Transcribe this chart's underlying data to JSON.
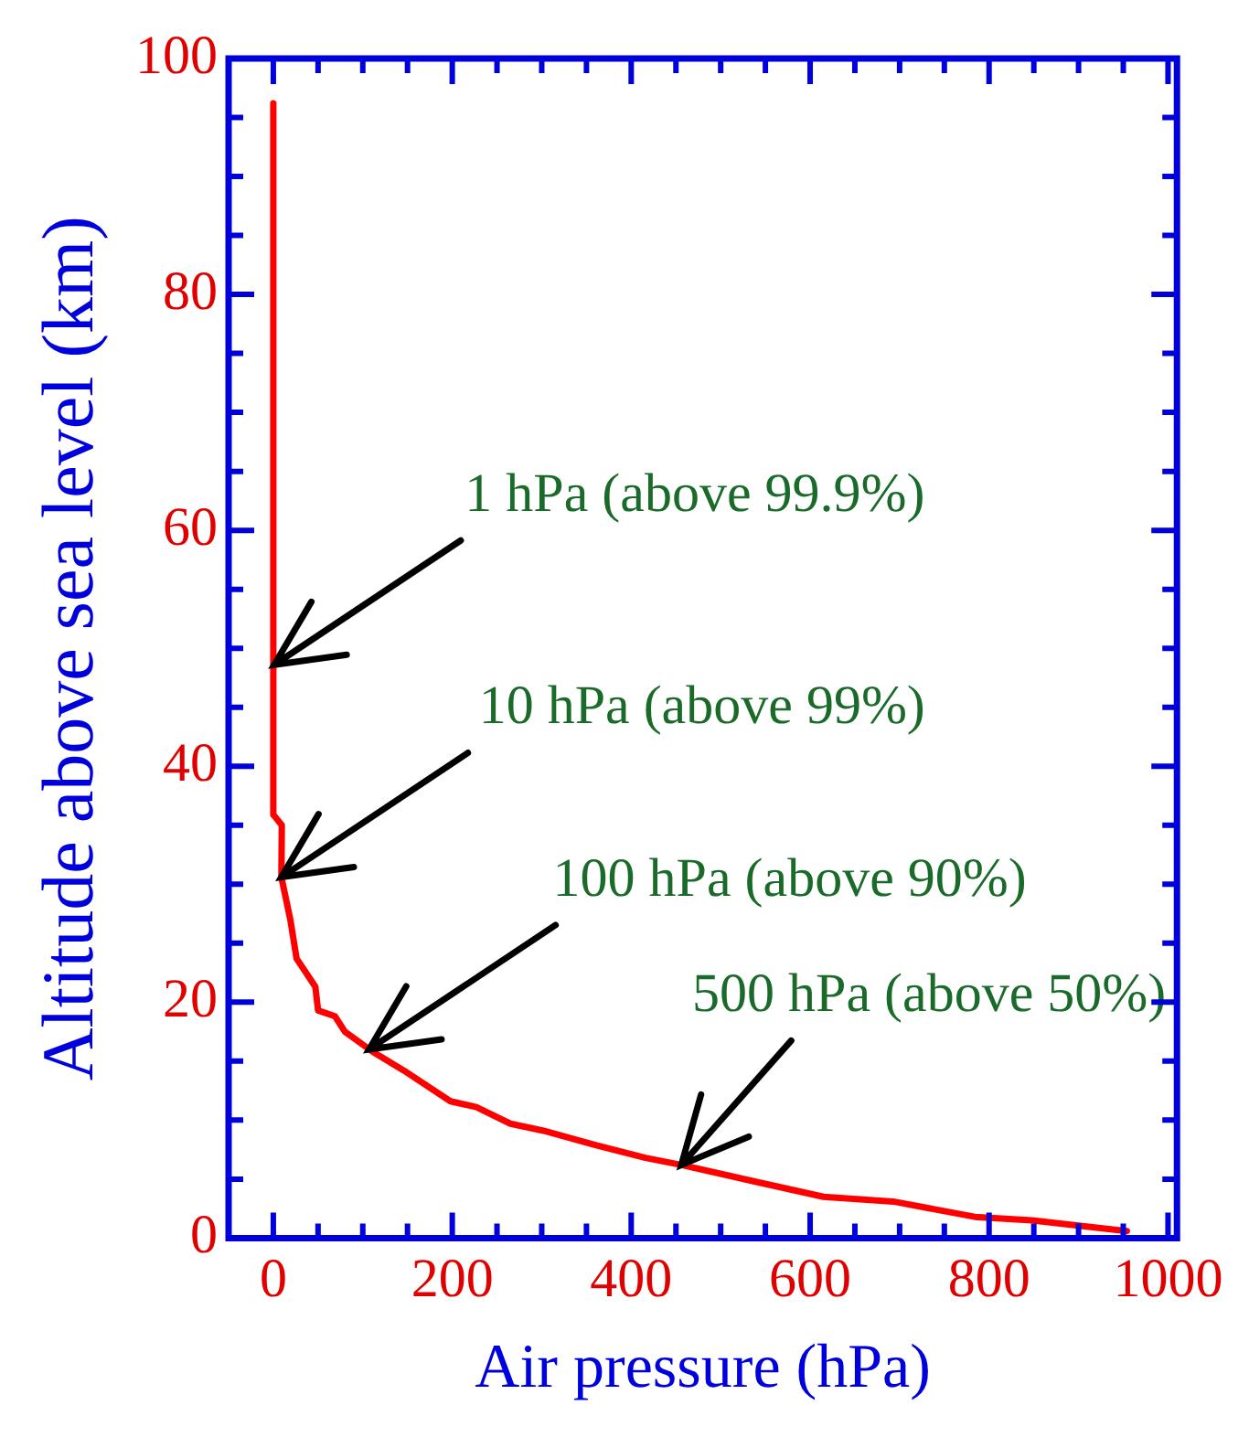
{
  "chart_data": {
    "type": "line",
    "xlabel": "Air pressure (hPa)",
    "ylabel": "Altitude above sea level (km)",
    "x": [
      0,
      0,
      9.5,
      9,
      19,
      26,
      47,
      50,
      69,
      80,
      111,
      146,
      198,
      227,
      265,
      302,
      359,
      416,
      456,
      538,
      615,
      693,
      784,
      848,
      954
    ],
    "series": [
      {
        "color": "#ff0000",
        "values": [
          96.2,
          35.9,
          35,
          30.6,
          27,
          23.7,
          21.3,
          19.3,
          18.8,
          17.5,
          15.8,
          14.2,
          11.6,
          11.1,
          9.7,
          9.1,
          7.9,
          6.8,
          6.2,
          4.8,
          3.5,
          3.1,
          1.8,
          1.5,
          0.6
        ]
      }
    ],
    "xlim": [
      -50,
      1010
    ],
    "xticks": [
      {
        "value": -50,
        "label": null
      },
      0,
      {
        "value": 50,
        "label": null
      },
      {
        "value": 100,
        "label": null
      },
      {
        "value": 150,
        "label": null
      },
      200,
      {
        "value": 250,
        "label": null
      },
      {
        "value": 300,
        "label": null
      },
      {
        "value": 350,
        "label": null
      },
      400,
      {
        "value": 450,
        "label": null
      },
      {
        "value": 500,
        "label": null
      },
      {
        "value": 550,
        "label": null
      },
      600,
      {
        "value": 650,
        "label": null
      },
      {
        "value": 700,
        "label": null
      },
      {
        "value": 750,
        "label": null
      },
      800,
      {
        "value": 850,
        "label": null
      },
      {
        "value": 900,
        "label": null
      },
      {
        "value": 950,
        "label": null
      },
      1000
    ],
    "ylim": [
      0,
      100
    ],
    "yticks": [
      0,
      {
        "value": 5,
        "label": null
      },
      {
        "value": 10,
        "label": null
      },
      {
        "value": 15,
        "label": null
      },
      20,
      {
        "value": 25,
        "label": null
      },
      {
        "value": 30,
        "label": null
      },
      {
        "value": 35,
        "label": null
      },
      40,
      {
        "value": 45,
        "label": null
      },
      {
        "value": 50,
        "label": null
      },
      {
        "value": 55,
        "label": null
      },
      60,
      {
        "value": 65,
        "label": null
      },
      {
        "value": 70,
        "label": null
      },
      {
        "value": 75,
        "label": null
      },
      80,
      {
        "value": 85,
        "label": null
      },
      {
        "value": 90,
        "label": null
      },
      {
        "value": 95,
        "label": null
      },
      100
    ],
    "annotations": [
      {
        "text": "1 hPa (above 99.9%)",
        "x": 1,
        "y": 48.6
      },
      {
        "text": "10 hPa (above 99%)",
        "x": 9,
        "y": 30.6
      },
      {
        "text": "100 hPa (above 90%)",
        "x": 107,
        "y": 16
      },
      {
        "text": "500 hPa (above 50%)",
        "x": 456,
        "y": 6.2
      }
    ],
    "grid": false,
    "legend": false,
    "marker": "none",
    "line_style": "solid"
  }
}
